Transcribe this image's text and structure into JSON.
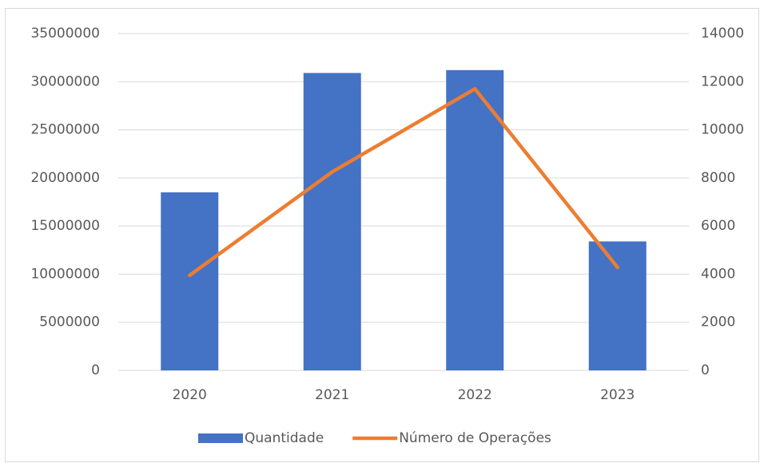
{
  "chart_data": {
    "type": "combo",
    "categories": [
      "2020",
      "2021",
      "2022",
      "2023"
    ],
    "series": [
      {
        "name": "Quantidade",
        "type": "bar",
        "color": "#4472c4",
        "axis": "y",
        "values": [
          18500000,
          30900000,
          31200000,
          13400000
        ]
      },
      {
        "name": "Número de Operações",
        "type": "line",
        "color": "#ed7d31",
        "axis": "y2",
        "values": [
          3950,
          8250,
          11700,
          4280
        ]
      }
    ],
    "ylim": [
      0,
      35000000
    ],
    "yticks": [
      0,
      5000000,
      10000000,
      15000000,
      20000000,
      25000000,
      30000000,
      35000000
    ],
    "y2lim": [
      0,
      14000
    ],
    "y2ticks": [
      0,
      2000,
      4000,
      6000,
      8000,
      10000,
      12000,
      14000
    ],
    "grid": true,
    "legend": "bottom"
  }
}
